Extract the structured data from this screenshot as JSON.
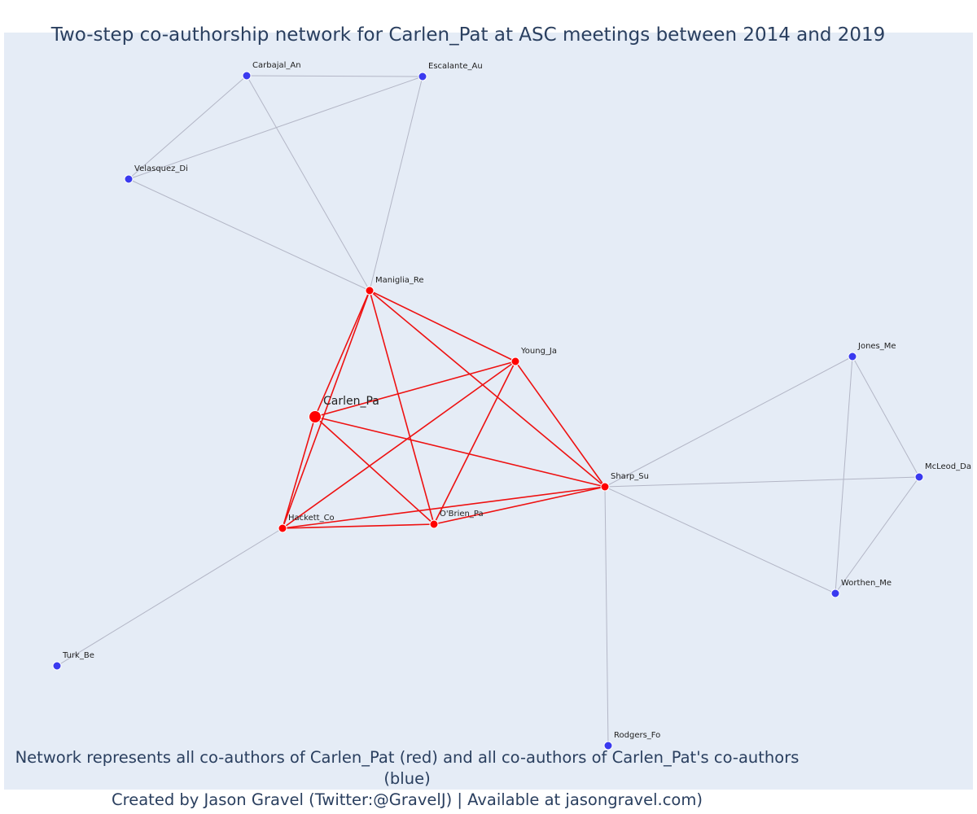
{
  "title": "Two-step co-authorship network for Carlen_Pat at ASC meetings between 2014 and 2019",
  "caption": {
    "line1": "Network represents all co-authors of Carlen_Pat (red) and all co-authors of Carlen_Pat's co-authors (blue)",
    "line2": "Created by Jason Gravel (Twitter:@GravelJ) | Available at jasongravel.com)"
  },
  "colors": {
    "direct": "#ff0000",
    "indirect": "#3a3aef",
    "edge_direct": "#ee1111",
    "edge_indirect": "#b3b6c6",
    "background": "#e5ecf6",
    "node_outline": "#ffffff"
  },
  "nodes": [
    {
      "id": "Carlen_Pa",
      "group": "focal"
    },
    {
      "id": "Maniglia_Re",
      "group": "direct"
    },
    {
      "id": "Young_Ja",
      "group": "direct"
    },
    {
      "id": "Sharp_Su",
      "group": "direct"
    },
    {
      "id": "Hackett_Co",
      "group": "direct"
    },
    {
      "id": "O'Brien_Pa",
      "group": "direct"
    },
    {
      "id": "Carbajal_An",
      "group": "indirect"
    },
    {
      "id": "Escalante_Au",
      "group": "indirect"
    },
    {
      "id": "Velasquez_Di",
      "group": "indirect"
    },
    {
      "id": "Jones_Me",
      "group": "indirect"
    },
    {
      "id": "McLeod_Da",
      "group": "indirect"
    },
    {
      "id": "Worthen_Me",
      "group": "indirect"
    },
    {
      "id": "Turk_Be",
      "group": "indirect"
    },
    {
      "id": "Rodgers_Fo",
      "group": "indirect"
    }
  ],
  "edges": [
    [
      "Carlen_Pa",
      "Maniglia_Re",
      "direct"
    ],
    [
      "Carlen_Pa",
      "Young_Ja",
      "direct"
    ],
    [
      "Carlen_Pa",
      "Sharp_Su",
      "direct"
    ],
    [
      "Carlen_Pa",
      "Hackett_Co",
      "direct"
    ],
    [
      "Carlen_Pa",
      "O'Brien_Pa",
      "direct"
    ],
    [
      "Maniglia_Re",
      "Young_Ja",
      "direct"
    ],
    [
      "Maniglia_Re",
      "Sharp_Su",
      "direct"
    ],
    [
      "Maniglia_Re",
      "Hackett_Co",
      "direct"
    ],
    [
      "Maniglia_Re",
      "O'Brien_Pa",
      "direct"
    ],
    [
      "Young_Ja",
      "Sharp_Su",
      "direct"
    ],
    [
      "Young_Ja",
      "Hackett_Co",
      "direct"
    ],
    [
      "Young_Ja",
      "O'Brien_Pa",
      "direct"
    ],
    [
      "Sharp_Su",
      "Hackett_Co",
      "direct"
    ],
    [
      "Sharp_Su",
      "O'Brien_Pa",
      "direct"
    ],
    [
      "Hackett_Co",
      "O'Brien_Pa",
      "direct"
    ],
    [
      "Carbajal_An",
      "Escalante_Au",
      "indirect"
    ],
    [
      "Carbajal_An",
      "Velasquez_Di",
      "indirect"
    ],
    [
      "Carbajal_An",
      "Maniglia_Re",
      "indirect"
    ],
    [
      "Escalante_Au",
      "Velasquez_Di",
      "indirect"
    ],
    [
      "Escalante_Au",
      "Maniglia_Re",
      "indirect"
    ],
    [
      "Velasquez_Di",
      "Maniglia_Re",
      "indirect"
    ],
    [
      "Sharp_Su",
      "Jones_Me",
      "indirect"
    ],
    [
      "Sharp_Su",
      "McLeod_Da",
      "indirect"
    ],
    [
      "Sharp_Su",
      "Worthen_Me",
      "indirect"
    ],
    [
      "Sharp_Su",
      "Rodgers_Fo",
      "indirect"
    ],
    [
      "Jones_Me",
      "McLeod_Da",
      "indirect"
    ],
    [
      "Jones_Me",
      "Worthen_Me",
      "indirect"
    ],
    [
      "McLeod_Da",
      "Worthen_Me",
      "indirect"
    ],
    [
      "Hackett_Co",
      "Turk_Be",
      "indirect"
    ]
  ]
}
